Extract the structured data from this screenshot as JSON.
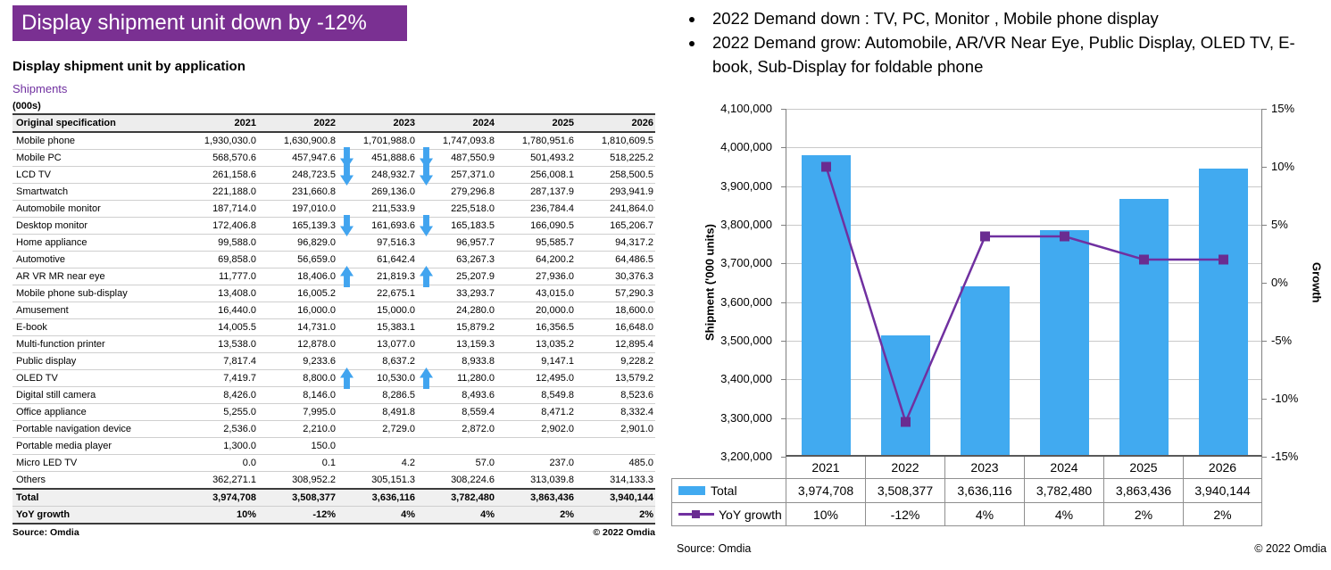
{
  "slide_title": "Display shipment unit down by -12%",
  "left_section": {
    "heading": "Display shipment unit by application",
    "series_label": "Shipments",
    "units_label": "(000s)",
    "table": {
      "columns": [
        "Original specification",
        "2021",
        "2022",
        "2023",
        "2024",
        "2025",
        "2026"
      ],
      "rows": [
        {
          "label": "Mobile phone",
          "values": [
            "1,930,030.0",
            "1,630,900.8",
            "1,701,988.0",
            "1,747,093.8",
            "1,780,951.6",
            "1,810,609.5"
          ]
        },
        {
          "label": "Mobile PC",
          "values": [
            "568,570.6",
            "457,947.6",
            "451,888.6",
            "487,550.9",
            "501,493.2",
            "518,225.2"
          ],
          "arrows": {
            "2022": "down",
            "2023": "down"
          }
        },
        {
          "label": "LCD TV",
          "values": [
            "261,158.6",
            "248,723.5",
            "248,932.7",
            "257,371.0",
            "256,008.1",
            "258,500.5"
          ],
          "arrows": {
            "2022": "down",
            "2023": "down"
          }
        },
        {
          "label": "Smartwatch",
          "values": [
            "221,188.0",
            "231,660.8",
            "269,136.0",
            "279,296.8",
            "287,137.9",
            "293,941.9"
          ]
        },
        {
          "label": "Automobile monitor",
          "values": [
            "187,714.0",
            "197,010.0",
            "211,533.9",
            "225,518.0",
            "236,784.4",
            "241,864.0"
          ]
        },
        {
          "label": "Desktop monitor",
          "values": [
            "172,406.8",
            "165,139.3",
            "161,693.6",
            "165,183.5",
            "166,090.5",
            "165,206.7"
          ],
          "arrows": {
            "2022": "down",
            "2023": "down"
          }
        },
        {
          "label": "Home appliance",
          "values": [
            "99,588.0",
            "96,829.0",
            "97,516.3",
            "96,957.7",
            "95,585.7",
            "94,317.2"
          ]
        },
        {
          "label": "Automotive",
          "values": [
            "69,858.0",
            "56,659.0",
            "61,642.4",
            "63,267.3",
            "64,200.2",
            "64,486.5"
          ]
        },
        {
          "label": "AR VR MR near eye",
          "values": [
            "11,777.0",
            "18,406.0",
            "21,819.3",
            "25,207.9",
            "27,936.0",
            "30,376.3"
          ],
          "arrows": {
            "2022": "up",
            "2023": "up"
          }
        },
        {
          "label": "Mobile phone sub-display",
          "values": [
            "13,408.0",
            "16,005.2",
            "22,675.1",
            "33,293.7",
            "43,015.0",
            "57,290.3"
          ]
        },
        {
          "label": "Amusement",
          "values": [
            "16,440.0",
            "16,000.0",
            "15,000.0",
            "24,280.0",
            "20,000.0",
            "18,600.0"
          ]
        },
        {
          "label": "E-book",
          "values": [
            "14,005.5",
            "14,731.0",
            "15,383.1",
            "15,879.2",
            "16,356.5",
            "16,648.0"
          ]
        },
        {
          "label": "Multi-function printer",
          "values": [
            "13,538.0",
            "12,878.0",
            "13,077.0",
            "13,159.3",
            "13,035.2",
            "12,895.4"
          ]
        },
        {
          "label": "Public display",
          "values": [
            "7,817.4",
            "9,233.6",
            "8,637.2",
            "8,933.8",
            "9,147.1",
            "9,228.2"
          ]
        },
        {
          "label": "OLED TV",
          "values": [
            "7,419.7",
            "8,800.0",
            "10,530.0",
            "11,280.0",
            "12,495.0",
            "13,579.2"
          ],
          "arrows": {
            "2022": "up",
            "2023": "up"
          }
        },
        {
          "label": "Digital still camera",
          "values": [
            "8,426.0",
            "8,146.0",
            "8,286.5",
            "8,493.6",
            "8,549.8",
            "8,523.6"
          ]
        },
        {
          "label": "Office appliance",
          "values": [
            "5,255.0",
            "7,995.0",
            "8,491.8",
            "8,559.4",
            "8,471.2",
            "8,332.4"
          ]
        },
        {
          "label": "Portable navigation device",
          "values": [
            "2,536.0",
            "2,210.0",
            "2,729.0",
            "2,872.0",
            "2,902.0",
            "2,901.0"
          ]
        },
        {
          "label": "Portable media player",
          "values": [
            "1,300.0",
            "150.0",
            "",
            "",
            "",
            ""
          ]
        },
        {
          "label": "Micro LED TV",
          "values": [
            "0.0",
            "0.1",
            "4.2",
            "57.0",
            "237.0",
            "485.0"
          ]
        },
        {
          "label": "Others",
          "values": [
            "362,271.1",
            "308,952.2",
            "305,151.3",
            "308,224.6",
            "313,039.8",
            "314,133.3"
          ]
        }
      ],
      "total_row": {
        "label": "Total",
        "values": [
          "3,974,708",
          "3,508,377",
          "3,636,116",
          "3,782,480",
          "3,863,436",
          "3,940,144"
        ]
      },
      "yoy_row": {
        "label": "YoY growth",
        "values": [
          "10%",
          "-12%",
          "4%",
          "4%",
          "2%",
          "2%"
        ]
      }
    },
    "source": "Source: Omdia",
    "copyright": "© 2022 Omdia"
  },
  "right_section": {
    "bullets": [
      "2022 Demand down : TV, PC, Monitor , Mobile phone display",
      "2022 Demand grow: Automobile, AR/VR Near Eye, Public Display, OLED TV, E-book, Sub-Display for foldable phone"
    ],
    "source": "Source: Omdia",
    "copyright": "© 2022 Omdia"
  },
  "chart_data": {
    "type": "combo-bar-line",
    "categories": [
      "2021",
      "2022",
      "2023",
      "2024",
      "2025",
      "2026"
    ],
    "series": [
      {
        "name": "Total",
        "type": "bar",
        "axis": "left",
        "color": "#41AAF0",
        "values": [
          3974708,
          3508377,
          3636116,
          3782480,
          3863436,
          3940144
        ],
        "labels": [
          "3,974,708",
          "3,508,377",
          "3,636,116",
          "3,782,480",
          "3,863,436",
          "3,940,144"
        ]
      },
      {
        "name": "YoY growth",
        "type": "line",
        "axis": "right",
        "color": "#7030A0",
        "marker_color": "#6A2C91",
        "values": [
          10,
          -12,
          4,
          4,
          2,
          2
        ],
        "labels": [
          "10%",
          "-12%",
          "4%",
          "4%",
          "2%",
          "2%"
        ]
      }
    ],
    "left_axis": {
      "title": "Shipment ('000 units)",
      "min": 3200000,
      "max": 4100000,
      "step": 100000,
      "tick_labels": [
        "4,100,000",
        "4,000,000",
        "3,900,000",
        "3,800,000",
        "3,700,000",
        "3,600,000",
        "3,500,000",
        "3,400,000",
        "3,300,000",
        "3,200,000"
      ]
    },
    "right_axis": {
      "title": "Growth",
      "min": -15,
      "max": 15,
      "step": 5,
      "tick_labels": [
        "15%",
        "10%",
        "5%",
        "0%",
        "-5%",
        "-10%",
        "-15%"
      ]
    },
    "grid": true,
    "legend_position": "table-below"
  },
  "colors": {
    "banner": "#7A3092",
    "accent_purple": "#7030A0",
    "bar_blue": "#41AAF0",
    "arrow_blue": "#41A4EF"
  }
}
